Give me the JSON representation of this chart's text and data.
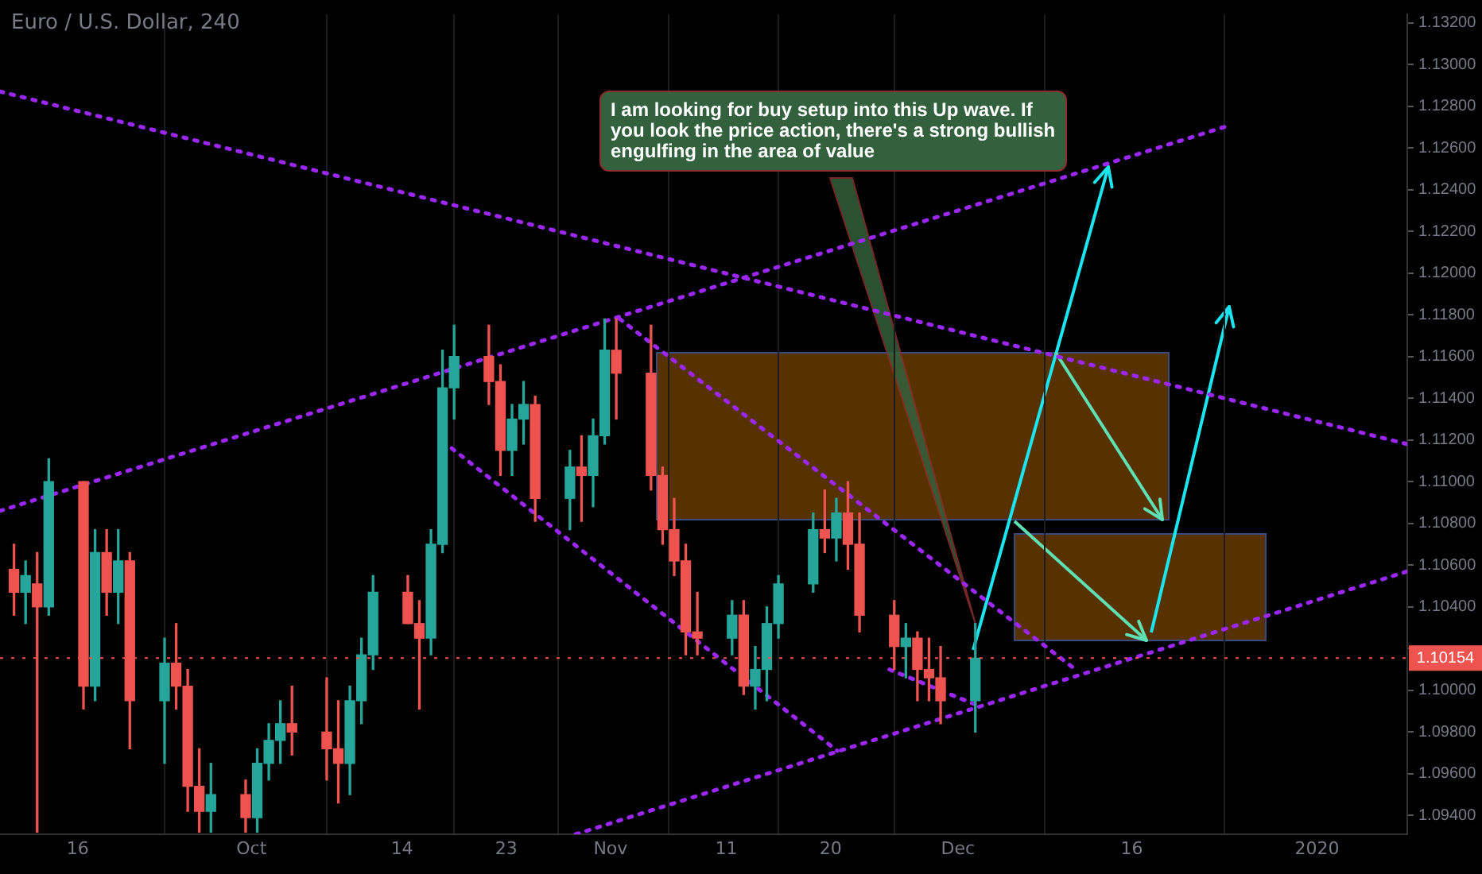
{
  "chart_data": {
    "type": "candlestick",
    "title": "Euro / U.S. Dollar, 240",
    "x": [
      "2019-09-10T12:00",
      "2019-09-11T12:00",
      "2019-09-12T12:00",
      "2019-09-13T12:00",
      "2019-09-16T12:00",
      "2019-09-17T12:00",
      "2019-09-18T12:00",
      "2019-09-19T12:00",
      "2019-09-20T12:00",
      "2019-09-23T12:00",
      "2019-09-24T12:00",
      "2019-09-25T12:00",
      "2019-09-26T12:00",
      "2019-09-27T12:00",
      "2019-09-30T12:00",
      "2019-10-01T12:00",
      "2019-10-02T12:00",
      "2019-10-03T12:00",
      "2019-10-04T12:00",
      "2019-10-07T12:00",
      "2019-10-08T12:00",
      "2019-10-09T12:00",
      "2019-10-10T12:00",
      "2019-10-11T12:00",
      "2019-10-14T12:00",
      "2019-10-15T12:00",
      "2019-10-16T12:00",
      "2019-10-17T12:00",
      "2019-10-18T12:00",
      "2019-10-21T12:00",
      "2019-10-22T12:00",
      "2019-10-23T12:00",
      "2019-10-24T12:00",
      "2019-10-25T12:00",
      "2019-10-28T12:00",
      "2019-10-29T12:00",
      "2019-10-30T12:00",
      "2019-10-31T12:00",
      "2019-11-01T12:00",
      "2019-11-04T12:00",
      "2019-11-05T12:00",
      "2019-11-06T12:00",
      "2019-11-07T12:00",
      "2019-11-08T12:00",
      "2019-11-11T12:00",
      "2019-11-12T12:00",
      "2019-11-13T12:00",
      "2019-11-14T12:00",
      "2019-11-15T12:00",
      "2019-11-18T12:00",
      "2019-11-19T12:00",
      "2019-11-20T12:00",
      "2019-11-21T12:00",
      "2019-11-22T12:00",
      "2019-11-25T12:00",
      "2019-11-26T12:00",
      "2019-11-27T12:00",
      "2019-11-28T12:00",
      "2019-11-29T12:00",
      "2019-12-02T12:00"
    ],
    "ohlc": [
      [
        1.1058,
        1.107,
        1.1036,
        1.1047
      ],
      [
        1.1047,
        1.1062,
        1.1032,
        1.1055
      ],
      [
        1.1051,
        1.1066,
        1.0932,
        1.104
      ],
      [
        1.104,
        1.1111,
        1.1036,
        1.11
      ],
      [
        1.11,
        1.11,
        1.0991,
        1.1002
      ],
      [
        1.1002,
        1.1077,
        1.0995,
        1.1066
      ],
      [
        1.1066,
        1.1077,
        1.1036,
        1.1047
      ],
      [
        1.1047,
        1.1077,
        1.1032,
        1.1062
      ],
      [
        1.1062,
        1.1066,
        1.0972,
        1.0995
      ],
      [
        1.0995,
        1.1025,
        1.0965,
        1.1013
      ],
      [
        1.1013,
        1.1032,
        1.0991,
        1.1002
      ],
      [
        1.1002,
        1.101,
        1.0942,
        1.0954
      ],
      [
        1.0954,
        1.0972,
        1.0932,
        1.0942
      ],
      [
        1.0942,
        1.0965,
        1.0932,
        1.095
      ],
      [
        1.095,
        1.0957,
        1.0932,
        1.0939
      ],
      [
        1.0939,
        1.0972,
        1.0932,
        1.0965
      ],
      [
        1.0965,
        1.0984,
        1.0957,
        1.0976
      ],
      [
        1.0976,
        1.0995,
        1.0965,
        1.0984
      ],
      [
        1.0984,
        1.1002,
        1.0969,
        1.098
      ],
      [
        1.098,
        1.1006,
        1.0957,
        1.0972
      ],
      [
        1.0972,
        1.0995,
        1.0946,
        1.0965
      ],
      [
        1.0965,
        1.1002,
        1.095,
        1.0995
      ],
      [
        1.0995,
        1.1025,
        1.0984,
        1.1017
      ],
      [
        1.1017,
        1.1055,
        1.101,
        1.1047
      ],
      [
        1.1047,
        1.1055,
        1.1032,
        1.1032
      ],
      [
        1.1032,
        1.1043,
        1.0991,
        1.1025
      ],
      [
        1.1025,
        1.1077,
        1.1017,
        1.107
      ],
      [
        1.107,
        1.1163,
        1.1066,
        1.1145
      ],
      [
        1.1145,
        1.1175,
        1.113,
        1.116
      ],
      [
        1.116,
        1.1175,
        1.1137,
        1.1148
      ],
      [
        1.1148,
        1.1156,
        1.1103,
        1.1115
      ],
      [
        1.1115,
        1.1137,
        1.1103,
        1.113
      ],
      [
        1.113,
        1.1148,
        1.1118,
        1.1137
      ],
      [
        1.1137,
        1.1141,
        1.1081,
        1.1092
      ],
      [
        1.1092,
        1.1115,
        1.1077,
        1.1107
      ],
      [
        1.1107,
        1.1122,
        1.1081,
        1.1103
      ],
      [
        1.1103,
        1.113,
        1.1088,
        1.1122
      ],
      [
        1.1122,
        1.1178,
        1.1118,
        1.1163
      ],
      [
        1.1163,
        1.1178,
        1.113,
        1.1152
      ],
      [
        1.1152,
        1.1175,
        1.1096,
        1.1103
      ],
      [
        1.1103,
        1.1107,
        1.107,
        1.1077
      ],
      [
        1.1077,
        1.1092,
        1.1055,
        1.1062
      ],
      [
        1.1062,
        1.107,
        1.1017,
        1.1028
      ],
      [
        1.1028,
        1.1047,
        1.1017,
        1.1025
      ],
      [
        1.1025,
        1.1043,
        1.1017,
        1.1036
      ],
      [
        1.1036,
        1.1043,
        1.0998,
        1.1002
      ],
      [
        1.1002,
        1.1021,
        1.0991,
        1.101
      ],
      [
        1.101,
        1.104,
        1.0995,
        1.1032
      ],
      [
        1.1032,
        1.1055,
        1.1025,
        1.1051
      ],
      [
        1.1051,
        1.1085,
        1.1047,
        1.1077
      ],
      [
        1.1077,
        1.1096,
        1.1066,
        1.1073
      ],
      [
        1.1073,
        1.1092,
        1.1062,
        1.1085
      ],
      [
        1.1085,
        1.11,
        1.1058,
        1.107
      ],
      [
        1.107,
        1.1085,
        1.1028,
        1.1036
      ],
      [
        1.1036,
        1.1043,
        1.101,
        1.1021
      ],
      [
        1.1021,
        1.1032,
        1.1006,
        1.1025
      ],
      [
        1.1025,
        1.1028,
        1.0995,
        1.101
      ],
      [
        1.101,
        1.1025,
        1.0995,
        1.1006
      ],
      [
        1.1006,
        1.1021,
        1.0984,
        1.0995
      ],
      [
        1.0995,
        1.1032,
        1.098,
        1.10154
      ]
    ],
    "colors": [
      "#ef5350",
      "#26a69a",
      "#ef5350",
      "#26a69a",
      "#ef5350",
      "#26a69a",
      "#ef5350",
      "#26a69a",
      "#ef5350",
      "#26a69a",
      "#ef5350",
      "#ef5350",
      "#ef5350",
      "#26a69a",
      "#ef5350",
      "#26a69a",
      "#26a69a",
      "#26a69a",
      "#ef5350",
      "#ef5350",
      "#ef5350",
      "#26a69a",
      "#26a69a",
      "#26a69a",
      "#ef5350",
      "#ef5350",
      "#26a69a",
      "#26a69a",
      "#26a69a",
      "#ef5350",
      "#ef5350",
      "#26a69a",
      "#26a69a",
      "#ef5350",
      "#26a69a",
      "#ef5350",
      "#26a69a",
      "#26a69a",
      "#ef5350",
      "#ef5350",
      "#ef5350",
      "#ef5350",
      "#ef5350",
      "#ef5350",
      "#26a69a",
      "#ef5350",
      "#26a69a",
      "#26a69a",
      "#26a69a",
      "#26a69a",
      "#ef5350",
      "#26a69a",
      "#ef5350",
      "#ef5350",
      "#ef5350",
      "#26a69a",
      "#ef5350",
      "#ef5350",
      "#ef5350",
      "#26a69a"
    ],
    "series": [
      {
        "type": "line",
        "x": [
          "2019-09-09T07:00",
          "2020-01-08T19:00"
        ],
        "values": [
          1.1287,
          1.1118
        ],
        "color": "#9c27f5",
        "line_style": "dotted",
        "marker": "none"
      },
      {
        "type": "line",
        "x": [
          "2019-09-09T07:00",
          "2019-12-24"
        ],
        "values": [
          1.1086,
          1.127
        ],
        "color": "#9c27f5",
        "line_style": "dotted",
        "marker": "none"
      },
      {
        "type": "line",
        "x": [
          "2019-10-18T07:00",
          "2019-11-20T14:00"
        ],
        "values": [
          1.1116,
          1.0971
        ],
        "color": "#9c27f5",
        "line_style": "dotted",
        "marker": "none"
      },
      {
        "type": "line",
        "x": [
          "2019-11-01T19:00",
          "2019-12-10T22:00"
        ],
        "values": [
          1.1178,
          1.1011
        ],
        "color": "#9c27f5",
        "line_style": "dotted",
        "marker": "none"
      },
      {
        "type": "line",
        "x": [
          "2019-10-29",
          "2020-01-08T19:00"
        ],
        "values": [
          1.0931,
          1.1057
        ],
        "color": "#9c27f5",
        "line_style": "dotted",
        "marker": "none"
      },
      {
        "type": "line",
        "x": [
          "2019-11-25T02:00",
          "2019-12-02T14:00"
        ],
        "values": [
          1.101,
          1.0993
        ],
        "color": "#9c27f5",
        "line_style": "dotted",
        "marker": "none"
      }
    ],
    "xlim": [
      "2019-09-09T07:00",
      "2020-01-08T19:00"
    ],
    "xticks": [
      {
        "value": "2019-09-16",
        "label": "16"
      },
      {
        "value": "2019-10-01",
        "label": "Oct"
      },
      {
        "value": "2019-10-14",
        "label": "14"
      },
      {
        "value": "2019-10-23",
        "label": "23"
      },
      {
        "value": "2019-11-01",
        "label": "Nov"
      },
      {
        "value": "2019-11-11",
        "label": "11"
      },
      {
        "value": "2019-11-20",
        "label": "20"
      },
      {
        "value": "2019-12-01",
        "label": "Dec"
      },
      {
        "value": "2019-12-16",
        "label": "16"
      },
      {
        "value": "2020-01-01",
        "label": "2020"
      }
    ],
    "ylim": [
      1.0931,
      1.1324
    ],
    "yticks": [
      {
        "value": 1.094,
        "label": "1.09400"
      },
      {
        "value": 1.096,
        "label": "1.09600"
      },
      {
        "value": 1.098,
        "label": "1.09800"
      },
      {
        "value": 1.1,
        "label": "1.10000"
      },
      {
        "value": 1.102,
        "label": null
      },
      {
        "value": 1.104,
        "label": "1.10400"
      },
      {
        "value": 1.106,
        "label": "1.10600"
      },
      {
        "value": 1.108,
        "label": "1.10800"
      },
      {
        "value": 1.11,
        "label": "1.11000"
      },
      {
        "value": 1.112,
        "label": "1.11200"
      },
      {
        "value": 1.114,
        "label": "1.11400"
      },
      {
        "value": 1.116,
        "label": "1.11600"
      },
      {
        "value": 1.118,
        "label": "1.11800"
      },
      {
        "value": 1.12,
        "label": "1.12000"
      },
      {
        "value": 1.122,
        "label": "1.12200"
      },
      {
        "value": 1.124,
        "label": "1.12400"
      },
      {
        "value": 1.126,
        "label": "1.12600"
      },
      {
        "value": 1.128,
        "label": "1.12800"
      },
      {
        "value": 1.13,
        "label": "1.13000"
      },
      {
        "value": 1.132,
        "label": "1.13200"
      }
    ],
    "grid": "x",
    "ref_lines": [
      {
        "axis": "y",
        "value": 1.10154,
        "label": "1.10154",
        "color": "#ef5350",
        "line_style": "dotted"
      }
    ],
    "annotations": [
      {
        "text": "I am looking for buy setup into this Up wave. If you look the price action, there's a strong bullish engulfing in the area of value",
        "x": "2019-12-02T12:00",
        "y": 1.1032
      }
    ]
  }
}
